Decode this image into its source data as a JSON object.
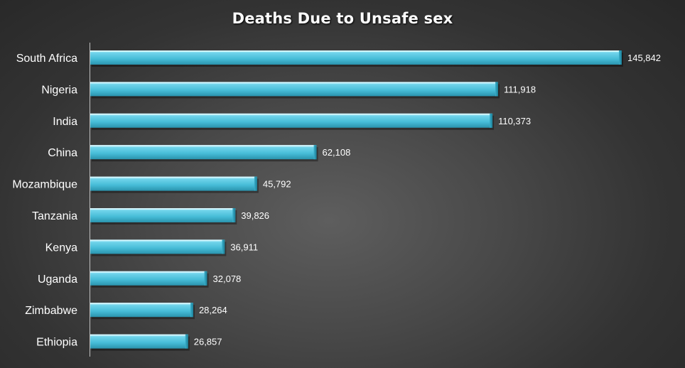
{
  "chart_data": {
    "type": "bar",
    "orientation": "horizontal",
    "title": "Deaths Due to Unsafe sex",
    "xlabel": "",
    "ylabel": "",
    "categories": [
      "South Africa",
      "Nigeria",
      "India",
      "China",
      "Mozambique",
      "Tanzania",
      "Kenya",
      "Uganda",
      "Zimbabwe",
      "Ethiopia"
    ],
    "values": [
      145842,
      111918,
      110373,
      62108,
      45792,
      39826,
      36911,
      32078,
      28264,
      26857
    ],
    "value_labels": [
      "145,842",
      "111,918",
      "110,373",
      "62,108",
      "45,792",
      "39,826",
      "36,911",
      "32,078",
      "28,264",
      "26,857"
    ],
    "xlim": [
      0,
      145842
    ],
    "grid": false,
    "legend": "none",
    "colors": {
      "bar": "#4ec3dc",
      "bar_light": "#8fe0f0",
      "bar_dark": "#1f8aa3",
      "text": "#ffffff",
      "axis": "#bfbfbf"
    }
  }
}
